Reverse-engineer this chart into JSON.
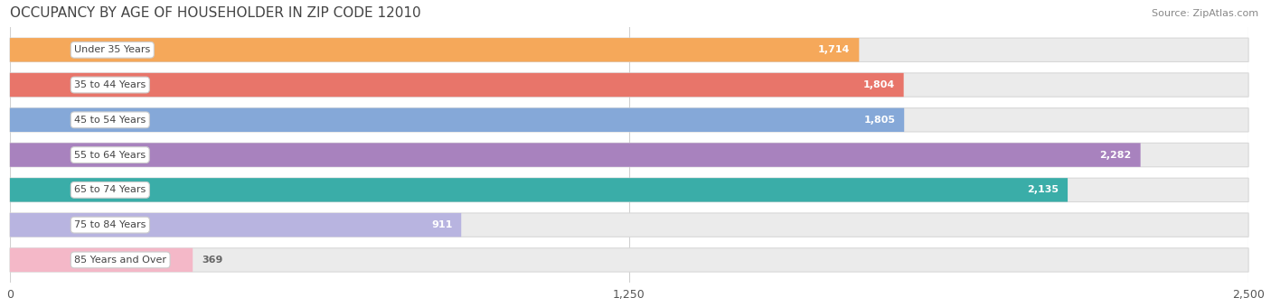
{
  "title": "OCCUPANCY BY AGE OF HOUSEHOLDER IN ZIP CODE 12010",
  "source": "Source: ZipAtlas.com",
  "categories": [
    "Under 35 Years",
    "35 to 44 Years",
    "45 to 54 Years",
    "55 to 64 Years",
    "65 to 74 Years",
    "75 to 84 Years",
    "85 Years and Over"
  ],
  "values": [
    1714,
    1804,
    1805,
    2282,
    2135,
    911,
    369
  ],
  "bar_colors": [
    "#F5A85A",
    "#E8756A",
    "#85A8D8",
    "#A882BE",
    "#3AADA8",
    "#B8B4E0",
    "#F4B8C8"
  ],
  "bar_edge_colors": [
    "#E8904A",
    "#D86050",
    "#6090C0",
    "#9068AA",
    "#289898",
    "#9898C8",
    "#E098A8"
  ],
  "track_color": "#EBEBEB",
  "track_edge_color": "#D8D8D8",
  "xlim": [
    0,
    2500
  ],
  "xticks": [
    0,
    1250,
    2500
  ],
  "background_color": "#FFFFFF",
  "title_fontsize": 11,
  "source_fontsize": 8,
  "bar_height": 0.68,
  "grid_color": "#D0D0D0",
  "value_white_threshold": 700
}
